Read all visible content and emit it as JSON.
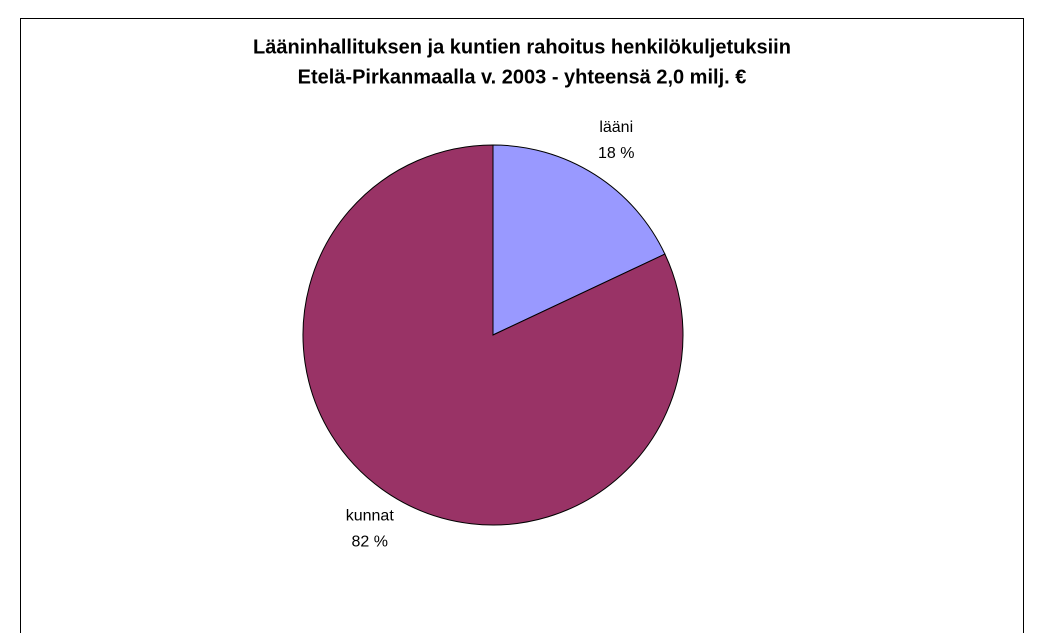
{
  "chart_data": {
    "type": "pie",
    "title": [
      "Lääninhallituksen ja kuntien rahoitus henkilökuljetuksiin",
      "Etelä-Pirkanmaalla v. 2003 - yhteensä 2,0 milj. €"
    ],
    "categories": [
      "lääni",
      "kunnat"
    ],
    "values": [
      18,
      82
    ],
    "value_labels": [
      "18 %",
      "82 %"
    ],
    "colors": [
      "#9999ff",
      "#993366"
    ]
  }
}
